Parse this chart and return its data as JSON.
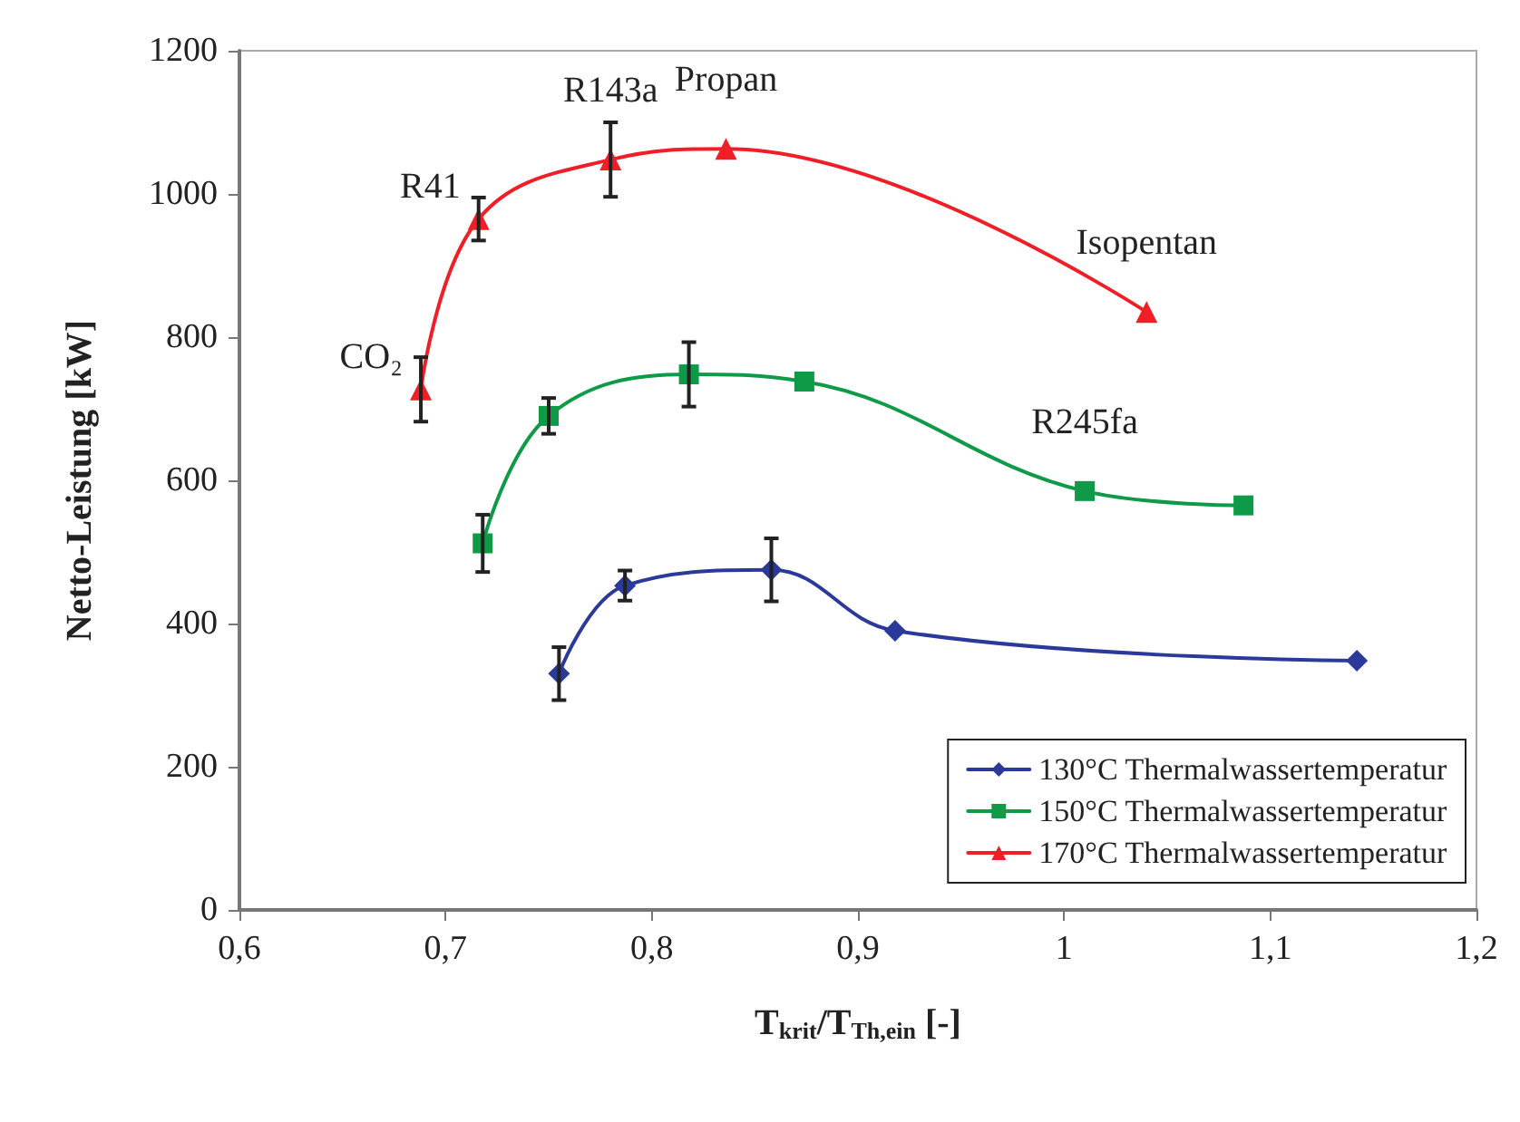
{
  "chart_data": {
    "type": "line",
    "xlabel": "T$_{krit}$/T$_{Th,ein}$ [-]",
    "ylabel": "Netto-Leistung [kW]",
    "xlim": [
      0.6,
      1.2
    ],
    "xticks": [
      {
        "value": 0.6,
        "label": "0,6"
      },
      {
        "value": 0.7,
        "label": "0,7"
      },
      {
        "value": 0.8,
        "label": "0,8"
      },
      {
        "value": 0.9,
        "label": "0,9"
      },
      1,
      {
        "value": 1.1,
        "label": "1,1"
      },
      {
        "value": 1.2,
        "label": "1,2"
      }
    ],
    "ylim": [
      0,
      1200
    ],
    "yticks": [
      0,
      200,
      400,
      600,
      800,
      1000,
      1200
    ],
    "grid": false,
    "legend": "bottom right",
    "series": [
      {
        "name": "130°C Thermalwassertemperatur",
        "color": "#2b3a9a",
        "marker": "diamond",
        "x": [
          0.755,
          0.787,
          0.858,
          0.918,
          1.142
        ],
        "values": [
          330,
          453,
          475,
          390,
          348
        ],
        "errors": [
          37,
          21,
          44,
          null,
          null
        ]
      },
      {
        "name": "150°C Thermalwassertemperatur",
        "color": "#0f9a48",
        "marker": "square",
        "x": [
          0.718,
          0.75,
          0.818,
          0.874,
          1.01,
          1.087
        ],
        "values": [
          512,
          690,
          748,
          738,
          585,
          565
        ],
        "errors": [
          40,
          25,
          45,
          null,
          null,
          null
        ]
      },
      {
        "name": "170°C Thermalwassertemperatur",
        "color": "#f01e26",
        "marker": "triangle",
        "x": [
          0.688,
          0.716,
          0.78,
          0.836,
          1.04
        ],
        "values": [
          727,
          965,
          1048,
          1063,
          835
        ],
        "errors": [
          45,
          30,
          52,
          null,
          null
        ]
      }
    ],
    "annotations": [
      {
        "text": "CO₂",
        "x": 0.688,
        "y": 727
      },
      {
        "text": "R41",
        "x": 0.716,
        "y": 965
      },
      {
        "text": "R143a",
        "x": 0.78,
        "y": 1048
      },
      {
        "text": "Propan",
        "x": 0.836,
        "y": 1063
      },
      {
        "text": "R245fa",
        "x": 1.01,
        "y": 585
      },
      {
        "text": "Isopentan",
        "x": 1.04,
        "y": 835
      }
    ]
  }
}
